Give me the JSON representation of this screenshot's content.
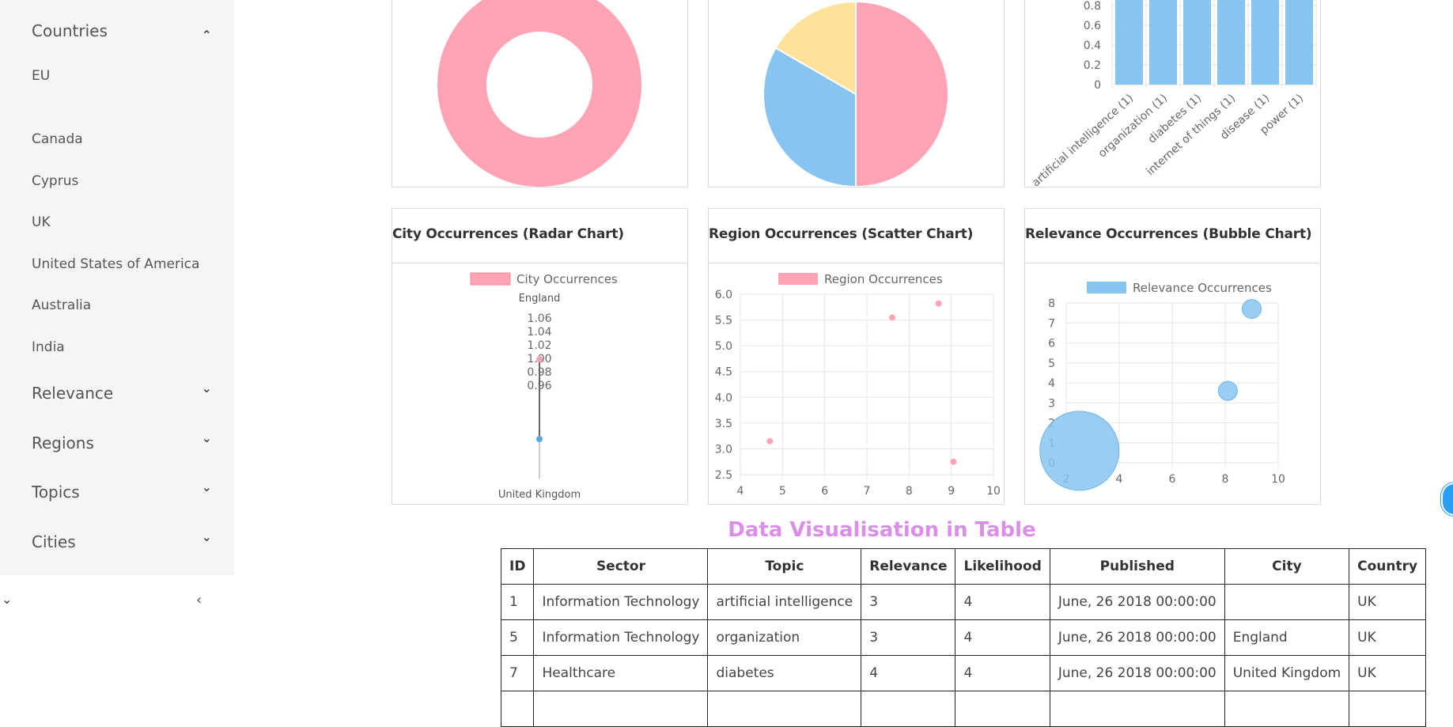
{
  "sidebar": {
    "countries_label": "Countries",
    "countries": [
      "EU",
      "Canada",
      "Cyprus",
      "UK",
      "United States of America",
      "Australia",
      "India"
    ],
    "relevance_label": "Relevance",
    "regions_label": "Regions",
    "topics_label": "Topics",
    "cities_label": "Cities",
    "chev_up": "⌃",
    "chev_down": "⌄",
    "collapse_symbol": "‹"
  },
  "charts": {
    "radar_title": "City Occurrences (Radar Chart)",
    "scatter_title": "Region Occurrences (Scatter Chart)",
    "bubble_title": "Relevance Occurrences (Bubble Chart)"
  },
  "chart_data": [
    {
      "type": "pie",
      "subtype": "doughnut",
      "values": [
        1
      ],
      "colors": [
        "#ffa3b5"
      ]
    },
    {
      "type": "pie",
      "values": [
        3,
        2,
        1
      ],
      "colors": [
        "#ffa3b5",
        "#88c4f0",
        "#fee19b"
      ]
    },
    {
      "type": "bar",
      "categories": [
        "artificial intelligence (1)",
        "organization (1)",
        "diabetes (1)",
        "internet of things (1)",
        "disease (1)",
        "power (1)"
      ],
      "values": [
        1,
        1,
        1,
        1,
        1,
        1
      ],
      "yticks": [
        "0",
        "0.2",
        "0.4",
        "0.6",
        "0.8"
      ],
      "color": "#88c4f0"
    },
    {
      "type": "radar",
      "legend": "City Occurrences",
      "labels": [
        "England",
        "United Kingdom"
      ],
      "ticks": [
        "1.06",
        "1.04",
        "1.02",
        "1.00",
        "0.98",
        "0.96"
      ],
      "color": "#ffa3b5"
    },
    {
      "type": "scatter",
      "legend": "Region Occurrences",
      "points": [
        [
          4.7,
          3.15
        ],
        [
          7.6,
          5.55
        ],
        [
          8.7,
          5.82
        ],
        [
          9.05,
          2.75
        ]
      ],
      "xlim": [
        4,
        10
      ],
      "ylim": [
        2.5,
        6.0
      ],
      "xticks": [
        "4",
        "5",
        "6",
        "7",
        "8",
        "9",
        "10"
      ],
      "yticks": [
        "2.5",
        "3.0",
        "3.5",
        "4.0",
        "4.5",
        "5.0",
        "5.5",
        "6.0"
      ],
      "color": "#ffa3b5"
    },
    {
      "type": "bubble",
      "legend": "Relevance Occurrences",
      "points": [
        [
          2.5,
          0.6,
          50
        ],
        [
          8.1,
          3.6,
          12
        ],
        [
          9.0,
          7.7,
          12
        ]
      ],
      "xlim": [
        2,
        10
      ],
      "ylim": [
        0,
        8
      ],
      "xticks": [
        "2",
        "4",
        "6",
        "8",
        "10"
      ],
      "yticks": [
        "0",
        "1",
        "2",
        "3",
        "4",
        "5",
        "6",
        "7",
        "8"
      ],
      "color": "#88c4f0"
    }
  ],
  "table": {
    "title": "Data Visualisation in Table",
    "headers": [
      "ID",
      "Sector",
      "Topic",
      "Relevance",
      "Likelihood",
      "Published",
      "City",
      "Country"
    ],
    "rows": [
      [
        "1",
        "Information Technology",
        "artificial intelligence",
        "3",
        "4",
        "June, 26 2018 00:00:00",
        "",
        "UK"
      ],
      [
        "5",
        "Information Technology",
        "organization",
        "3",
        "4",
        "June, 26 2018 00:00:00",
        "England",
        "UK"
      ],
      [
        "7",
        "Healthcare",
        "diabetes",
        "4",
        "4",
        "June, 26 2018 00:00:00",
        "United Kingdom",
        "UK"
      ],
      [
        "",
        "",
        "",
        "",
        "",
        "",
        "",
        ""
      ]
    ]
  }
}
